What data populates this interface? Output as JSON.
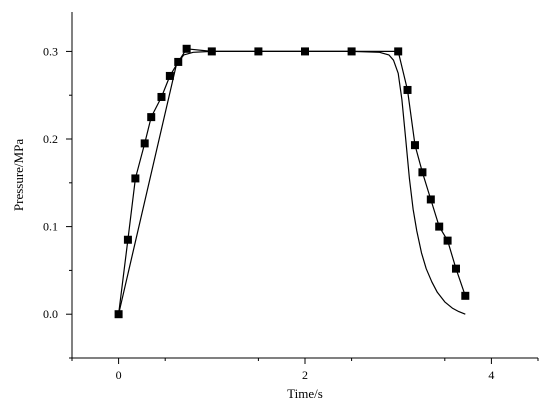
{
  "chart_data": {
    "type": "line",
    "xlabel": "Time/s",
    "ylabel": "Pressure/MPa",
    "xlim": [
      -0.5,
      4.5
    ],
    "ylim": [
      -0.05,
      0.345
    ],
    "x_ticks": [
      0,
      2,
      4
    ],
    "x_tick_labels": [
      "0",
      "2",
      "4"
    ],
    "y_ticks": [
      0.0,
      0.1,
      0.2,
      0.3
    ],
    "y_tick_labels": [
      "0.0",
      "0.1",
      "0.2",
      "0.3"
    ],
    "grid": false,
    "legend": "none",
    "series": [
      {
        "marker": "square",
        "color": "#000000",
        "x": [
          0.0,
          0.1,
          0.18,
          0.28,
          0.35,
          0.46,
          0.55,
          0.64,
          0.73,
          1.0,
          1.5,
          2.0,
          2.5,
          3.0,
          3.1,
          3.18,
          3.26,
          3.35,
          3.44,
          3.53,
          3.62,
          3.72
        ],
        "y": [
          0.0,
          0.085,
          0.155,
          0.195,
          0.225,
          0.248,
          0.272,
          0.288,
          0.303,
          0.3,
          0.3,
          0.3,
          0.3,
          0.3,
          0.256,
          0.193,
          0.162,
          0.131,
          0.1,
          0.084,
          0.052,
          0.021
        ]
      },
      {
        "marker": "none",
        "color": "#000000",
        "x": [
          0.0,
          0.62,
          0.7,
          0.8,
          1.0,
          1.5,
          2.0,
          2.5,
          2.8,
          2.9,
          2.95,
          3.0,
          3.04,
          3.08,
          3.12,
          3.16,
          3.2,
          3.25,
          3.3,
          3.36,
          3.42,
          3.5,
          3.58,
          3.65,
          3.72
        ],
        "y": [
          0.0,
          0.285,
          0.296,
          0.299,
          0.3,
          0.3,
          0.3,
          0.3,
          0.299,
          0.296,
          0.29,
          0.275,
          0.245,
          0.2,
          0.155,
          0.12,
          0.095,
          0.07,
          0.052,
          0.037,
          0.025,
          0.014,
          0.007,
          0.003,
          0.0
        ]
      }
    ]
  }
}
